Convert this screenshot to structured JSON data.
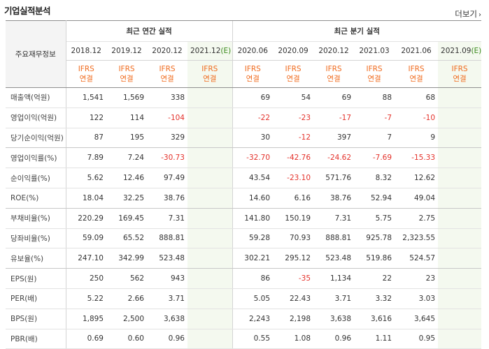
{
  "title": "기업실적분석",
  "more_label": "더보기",
  "header": {
    "row_label": "주요재무정보",
    "annual_group": "최근 연간 실적",
    "quarter_group": "최근 분기 실적",
    "annual_periods": [
      "2018.12",
      "2019.12",
      "2020.12",
      "2021.12"
    ],
    "annual_est_suffix": "(E)",
    "quarter_periods": [
      "2020.06",
      "2020.09",
      "2020.12",
      "2021.03",
      "2021.06",
      "2021.09"
    ],
    "quarter_est_suffix": "(E)",
    "basis_top": "IFRS",
    "basis_bottom": "연결"
  },
  "rows": [
    {
      "label": "매출액(억원)",
      "values": [
        "1,541",
        "1,569",
        "338",
        "",
        "69",
        "54",
        "69",
        "88",
        "68",
        ""
      ]
    },
    {
      "label": "영업이익(억원)",
      "values": [
        "122",
        "114",
        "-104",
        "",
        "-22",
        "-23",
        "-17",
        "-7",
        "-10",
        ""
      ]
    },
    {
      "label": "당기순이익(억원)",
      "values": [
        "87",
        "195",
        "329",
        "",
        "30",
        "-12",
        "397",
        "7",
        "9",
        ""
      ]
    },
    {
      "label": "영업이익률(%)",
      "values": [
        "7.89",
        "7.24",
        "-30.73",
        "",
        "-32.70",
        "-42.76",
        "-24.62",
        "-7.69",
        "-15.33",
        ""
      ]
    },
    {
      "label": "순이익률(%)",
      "values": [
        "5.62",
        "12.46",
        "97.49",
        "",
        "43.54",
        "-23.10",
        "571.76",
        "8.32",
        "12.62",
        ""
      ]
    },
    {
      "label": "ROE(%)",
      "values": [
        "18.04",
        "32.25",
        "38.76",
        "",
        "14.60",
        "6.16",
        "38.76",
        "52.94",
        "49.04",
        ""
      ]
    },
    {
      "label": "부채비율(%)",
      "values": [
        "220.29",
        "169.45",
        "7.31",
        "",
        "141.80",
        "150.19",
        "7.31",
        "5.75",
        "2.75",
        ""
      ]
    },
    {
      "label": "당좌비율(%)",
      "values": [
        "59.09",
        "65.52",
        "888.81",
        "",
        "59.28",
        "70.93",
        "888.81",
        "925.78",
        "2,323.55",
        ""
      ]
    },
    {
      "label": "유보율(%)",
      "values": [
        "247.10",
        "342.99",
        "523.48",
        "",
        "302.21",
        "295.12",
        "523.48",
        "519.86",
        "524.57",
        ""
      ]
    },
    {
      "label": "EPS(원)",
      "values": [
        "250",
        "562",
        "943",
        "",
        "86",
        "-35",
        "1,134",
        "22",
        "23",
        ""
      ]
    },
    {
      "label": "PER(배)",
      "values": [
        "5.22",
        "2.66",
        "3.71",
        "",
        "5.05",
        "22.43",
        "3.71",
        "3.32",
        "3.03",
        ""
      ]
    },
    {
      "label": "BPS(원)",
      "values": [
        "1,895",
        "2,500",
        "3,638",
        "",
        "2,243",
        "2,198",
        "3,638",
        "3,616",
        "3,645",
        ""
      ]
    },
    {
      "label": "PBR(배)",
      "values": [
        "0.69",
        "0.60",
        "0.96",
        "",
        "0.55",
        "1.08",
        "0.96",
        "1.11",
        "0.95",
        ""
      ]
    }
  ],
  "colors": {
    "negative": "#e4322b",
    "basis": "#f06b1e",
    "estimate_bg": "#f4f9ef"
  }
}
